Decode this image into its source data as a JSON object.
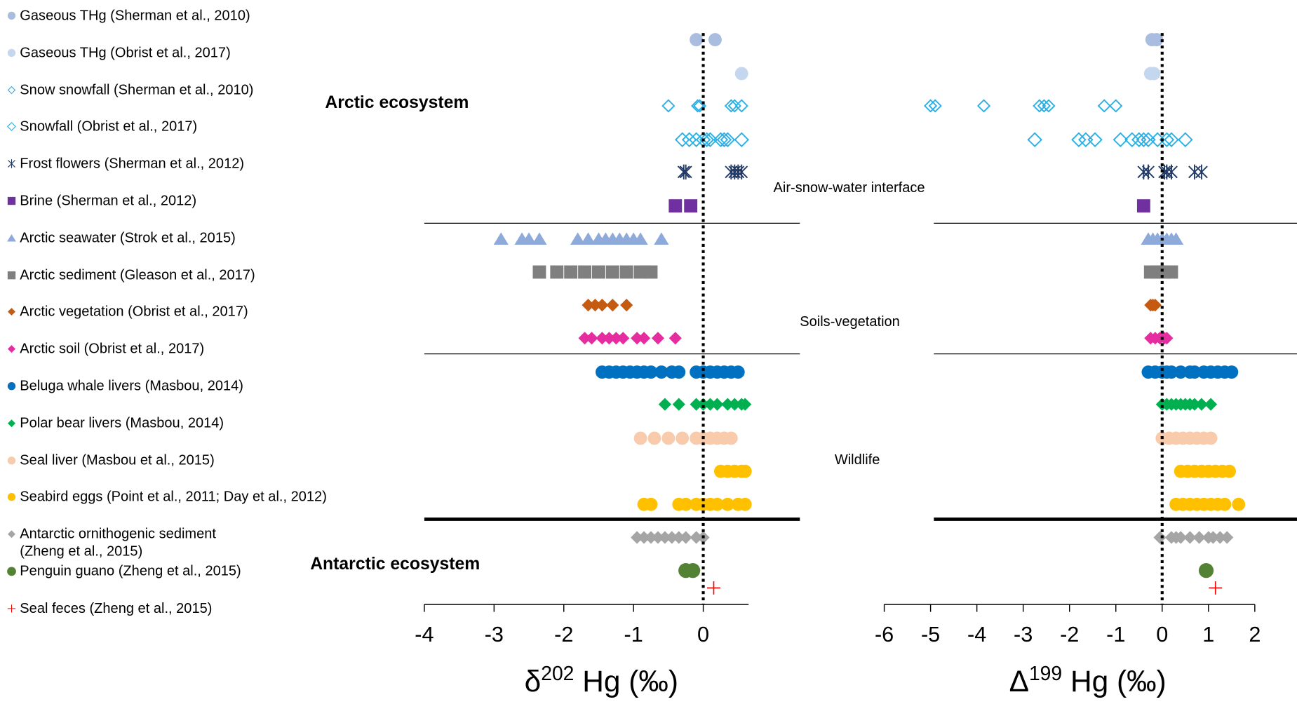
{
  "chart_data": {
    "type": "scatter",
    "annotations": [
      "Arctic ecosystem",
      "Antarctic ecosystem",
      "Air-snow-water interface",
      "Soils-vegetation",
      "Wildlife"
    ],
    "panels": [
      {
        "xlabel": {
          "prefix": "δ",
          "sup": "202",
          "suffix": " Hg (‰)"
        },
        "xlim": [
          -4,
          0.65
        ],
        "xticks": [
          -4,
          -3,
          -2,
          -1,
          0
        ]
      },
      {
        "xlabel": {
          "prefix": "Δ",
          "sup": "199",
          "suffix": " Hg (‰)"
        },
        "xlim": [
          -6,
          2
        ],
        "xticks": [
          -6,
          -5,
          -4,
          -3,
          -2,
          -1,
          0,
          1,
          2
        ]
      }
    ],
    "series": [
      {
        "name": "Gaseous THg (Sherman et al., 2010)",
        "color": "#a9bde0",
        "marker": "circle",
        "values": [
          [
            [
              -0.1,
              0.17
            ]
          ],
          [
            [
              -0.22,
              -0.12
            ]
          ]
        ]
      },
      {
        "name": "Gaseous THg (Obrist et al., 2017)",
        "color": "#c4d7ee",
        "marker": "circle",
        "values": [
          [
            [
              0.55
            ]
          ],
          [
            [
              -0.25,
              -0.18
            ]
          ]
        ]
      },
      {
        "name": "Snow snowfall (Sherman et al., 2010)",
        "color": "#2ab0e6",
        "marker": "diamond-open",
        "values": [
          [
            [
              -0.5,
              -0.08,
              -0.05,
              0.4,
              0.45,
              0.55
            ]
          ],
          [
            [
              -5.0,
              -4.9,
              -3.85,
              -2.65,
              -2.55,
              -2.45,
              -1.25,
              -1.0
            ]
          ]
        ]
      },
      {
        "name": "Snowfall (Obrist et al., 2017)",
        "color": "#2ab0e6",
        "marker": "diamond-open-large",
        "values": [
          [
            [
              -0.3,
              -0.2,
              -0.1,
              0,
              0.05,
              0.1,
              0.25,
              0.3,
              0.35,
              0.55
            ]
          ],
          [
            [
              -2.75,
              -1.8,
              -1.65,
              -1.45,
              -0.9,
              -0.65,
              -0.5,
              -0.4,
              -0.3,
              -0.1,
              0.1,
              0.2,
              0.5
            ]
          ]
        ]
      },
      {
        "name": "Frost flowers (Sherman et al., 2012)",
        "color": "#1f3864",
        "marker": "star",
        "values": [
          [
            [
              -0.28,
              -0.25,
              0.4,
              0.45,
              0.5,
              0.55
            ]
          ],
          [
            [
              -0.4,
              -0.3,
              0.05,
              0.1,
              0.2,
              0.7,
              0.85
            ]
          ]
        ]
      },
      {
        "name": "Brine (Sherman et al., 2012)",
        "color": "#7030a0",
        "marker": "square",
        "values": [
          [
            [
              -0.4,
              -0.18
            ]
          ],
          [
            [
              -0.4
            ]
          ]
        ]
      },
      {
        "name": "Arctic seawater (Strok et al., 2015)",
        "color": "#8eaadb",
        "marker": "triangle",
        "values": [
          [
            [
              -2.9,
              -2.6,
              -2.5,
              -2.35,
              -1.8,
              -1.65,
              -1.5,
              -1.4,
              -1.3,
              -1.2,
              -1.1,
              -1.0,
              -0.9,
              -0.6
            ]
          ],
          [
            [
              -0.3,
              -0.2,
              -0.1,
              0,
              0.1,
              0.2,
              0.3
            ]
          ]
        ]
      },
      {
        "name": "Arctic sediment (Gleason et al., 2017)",
        "color": "#7f7f7f",
        "marker": "square",
        "values": [
          [
            [
              -2.35,
              -2.1,
              -1.9,
              -1.7,
              -1.5,
              -1.3,
              -1.1,
              -0.9,
              -0.75
            ]
          ],
          [
            [
              -0.25,
              -0.1,
              0.05,
              0.2
            ]
          ]
        ]
      },
      {
        "name": "Arctic vegetation (Obrist et al., 2017)",
        "color": "#c55a11",
        "marker": "diamond",
        "values": [
          [
            [
              -1.65,
              -1.55,
              -1.45,
              -1.3,
              -1.1
            ]
          ],
          [
            [
              -0.25,
              -0.2,
              -0.15
            ]
          ]
        ]
      },
      {
        "name": "Arctic soil (Obrist et al., 2017)",
        "color": "#e62da0",
        "marker": "diamond",
        "values": [
          [
            [
              -1.7,
              -1.6,
              -1.45,
              -1.35,
              -1.25,
              -1.15,
              -0.95,
              -0.85,
              -0.65,
              -0.4
            ]
          ],
          [
            [
              -0.25,
              -0.15,
              -0.05,
              0.05,
              0.1
            ]
          ]
        ]
      },
      {
        "name": "Beluga whale livers  (Masbou, 2014)",
        "color": "#0070c0",
        "marker": "circle",
        "values": [
          [
            [
              -1.45,
              -1.35,
              -1.25,
              -1.15,
              -1.05,
              -0.95,
              -0.85,
              -0.75,
              -0.6,
              -0.45,
              -0.35,
              -0.1,
              0,
              0.1,
              0.2,
              0.3,
              0.4,
              0.5
            ]
          ],
          [
            [
              -0.3,
              -0.15,
              0,
              0.1,
              0.2,
              0.4,
              0.6,
              0.7,
              0.9,
              1.05,
              1.2,
              1.35,
              1.5
            ]
          ]
        ]
      },
      {
        "name": "Polar bear livers   (Masbou, 2014)",
        "color": "#00b050",
        "marker": "diamond",
        "values": [
          [
            [
              -0.55,
              -0.35,
              -0.1,
              0,
              0.1,
              0.2,
              0.35,
              0.45,
              0.55,
              0.6
            ]
          ],
          [
            [
              0,
              0.1,
              0.2,
              0.3,
              0.4,
              0.5,
              0.6,
              0.7,
              0.85,
              1.05
            ]
          ]
        ]
      },
      {
        "name": "Seal liver (Masbou et al., 2015)",
        "color": "#f8cbad",
        "marker": "circle",
        "values": [
          [
            [
              -0.9,
              -0.7,
              -0.5,
              -0.3,
              -0.1,
              0,
              0.1,
              0.2,
              0.3,
              0.4
            ]
          ],
          [
            [
              0,
              0.15,
              0.3,
              0.45,
              0.6,
              0.75,
              0.9,
              1.05
            ]
          ]
        ]
      },
      {
        "name": "Seabird eggs  (Point et al., 2011; Day et al., 2012)",
        "color": "#ffc000",
        "marker": "circle",
        "values": [
          [
            [
              0.25,
              0.35,
              0.45,
              0.55,
              0.6
            ],
            [
              -0.85,
              -0.75,
              -0.35,
              -0.25,
              -0.1,
              0,
              0.1,
              0.2,
              0.35,
              0.5,
              0.6
            ]
          ],
          [
            [
              0.4,
              0.55,
              0.7,
              0.85,
              1.0,
              1.15,
              1.3,
              1.45
            ],
            [
              0.3,
              0.45,
              0.6,
              0.75,
              0.9,
              1.05,
              1.2,
              1.35,
              1.65
            ]
          ]
        ]
      },
      {
        "name": "Antarctic ornithogenic sediment\n(Zheng et al., 2015)",
        "color": "#a5a5a5",
        "marker": "diamond",
        "values": [
          [
            [
              -0.95,
              -0.85,
              -0.75,
              -0.65,
              -0.55,
              -0.45,
              -0.35,
              -0.25,
              -0.1,
              0
            ]
          ],
          [
            [
              -0.05,
              0.2,
              0.3,
              0.4,
              0.6,
              0.8,
              1.0,
              1.1,
              1.25,
              1.4
            ]
          ]
        ]
      },
      {
        "name": "Penguin guano (Zheng et al., 2015)",
        "color": "#548235",
        "marker": "circle-large",
        "values": [
          [
            [
              -0.25,
              -0.15
            ]
          ],
          [
            [
              0.95
            ]
          ]
        ]
      },
      {
        "name": "Seal feces (Zheng et al., 2015)",
        "color": "#ff0000",
        "marker": "plus",
        "values": [
          [
            [
              0.15
            ]
          ],
          [
            [
              1.15
            ]
          ]
        ]
      }
    ]
  }
}
